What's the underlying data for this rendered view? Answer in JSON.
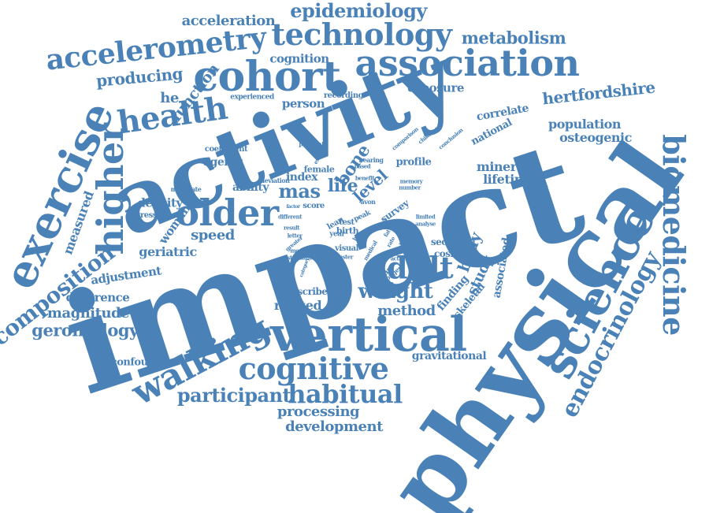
{
  "palette": {
    "word_color": "#4a82b8",
    "background": "#ffffff"
  },
  "words": {
    "impact": "impact",
    "physical": "physical",
    "activity": "activity",
    "vertical": "vertical",
    "cognitive": "cognitive",
    "older": "older",
    "cohort": "cohort",
    "association": "association",
    "technology": "technology",
    "accelerometry": "accelerometry",
    "exercise": "exercise",
    "higher": "higher",
    "health": "health",
    "science": "science",
    "biomedicine": "biomedicine",
    "endocrinology": "endocrinology",
    "walking": "walking",
    "habitual": "habitual",
    "participant": "participant",
    "adult": "adult",
    "weight": "weight",
    "composition": "composition",
    "epidemiology": "epidemiology",
    "metabolism": "metabolism",
    "acceleration": "acceleration",
    "cognition": "cognition",
    "producing": "producing",
    "function": "function",
    "he": "he",
    "hertfordshire": "hertfordshire",
    "population": "population",
    "osteogenic": "osteogenic",
    "mineral": "mineral",
    "lifetime": "lifetime",
    "correlate": "correlate",
    "national": "national",
    "exposure": "exposure",
    "person": "person",
    "bone": "bone",
    "level": "level",
    "life": "life",
    "mas": "mas",
    "index": "index",
    "ability": "ability",
    "ageing": "ageing",
    "density": "density",
    "woman": "woman",
    "measured": "measured",
    "speed": "speed",
    "geriatric": "geriatric",
    "adjustment": "adjustment",
    "difference": "difference",
    "magnitude": "magnitude",
    "gerontology": "gerontology",
    "related": "related",
    "method": "method",
    "finding": "finding",
    "study": "study",
    "body": "body",
    "skeletal": "skeletal",
    "associated": "associated",
    "sectional": "sectional",
    "coshiba": "coshiba",
    "gravitational": "gravitational",
    "confounder": "confounder",
    "processing": "processing",
    "development": "development",
    "profile": "profile",
    "regression": "regression",
    "coefficient": "coefficient",
    "experienced": "experienced",
    "recording": "recording",
    "female": "female",
    "deviation": "deviation",
    "moderate": "moderate",
    "score": "score",
    "visual": "visual",
    "test": "test",
    "birth": "birth",
    "year": "year",
    "lean": "lean",
    "survey": "survey",
    "avon": "avon",
    "peak": "peak",
    "childhood": "childhood",
    "conclusion": "conclusion",
    "comparison": "comparison",
    "potential": "potential",
    "bearing": "bearing",
    "based": "based",
    "benefit": "benefit",
    "background": "background",
    "result": "result",
    "letter": "letter",
    "model": "model",
    "standard": "standard",
    "greater": "greater",
    "describe": "describe",
    "whereas": "whereas",
    "stronger": "stronger",
    "activities": "activities",
    "faster": "faster",
    "limited": "limited",
    "analyse": "analyse",
    "memory": "memory",
    "number": "number",
    "different": "different",
    "example": "example",
    "factor": "factor",
    "category": "category",
    "medical": "medical",
    "total": "total",
    "hip": "hip",
    "fat": "fat",
    "rate": "rate",
    "small": "small",
    "long": "long"
  }
}
